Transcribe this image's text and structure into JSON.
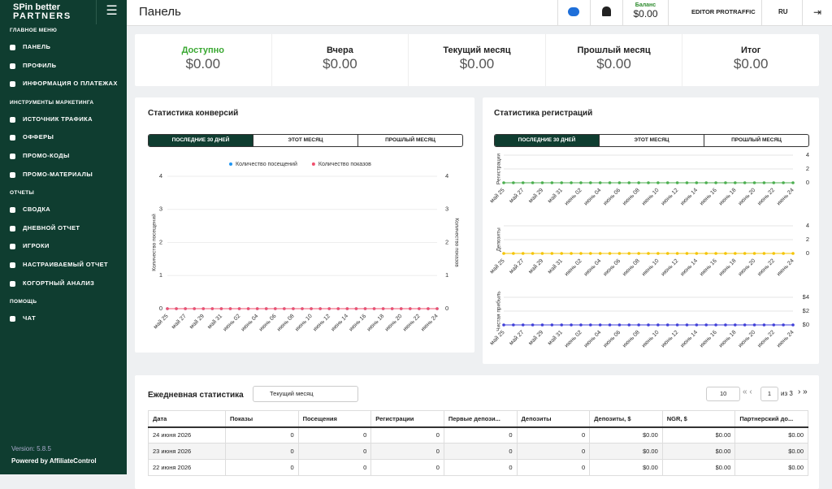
{
  "sidebar": {
    "logo_top": "SPin better",
    "logo_bottom": "PARTNERS",
    "sections": [
      {
        "title": "ГЛАВНОЕ МЕНЮ",
        "items": [
          "ПАНЕЛЬ",
          "ПРОФИЛЬ",
          "ИНФОРМАЦИЯ О ПЛАТЕЖАХ"
        ]
      },
      {
        "title": "ИНСТРУМЕНТЫ МАРКЕТИНГА",
        "items": [
          "ИСТОЧНИК ТРАФИКА",
          "ОФФЕРЫ",
          "ПРОМО-КОДЫ",
          "ПРОМО-МАТЕРИАЛЫ"
        ]
      },
      {
        "title": "ОТЧЕТЫ",
        "items": [
          "СВОДКА",
          "ДНЕВНОЙ ОТЧЕТ",
          "ИГРОКИ",
          "НАСТРАИВАЕМЫЙ ОТЧЕТ",
          "КОГОРТНЫЙ АНАЛИЗ"
        ]
      },
      {
        "title": "ПОМОЩЬ",
        "items": [
          "ЧАТ"
        ]
      }
    ],
    "version": "Version: 5.8.5",
    "powered": "Powered by",
    "brand": "AffiliateControl"
  },
  "header": {
    "title": "Панель",
    "balance_label": "Баланс",
    "balance": "$0.00",
    "user": "EDITOR PROTRAFFIC",
    "lang": "RU"
  },
  "summary": [
    {
      "label": "Доступно",
      "value": "$0.00"
    },
    {
      "label": "Вчера",
      "value": "$0.00"
    },
    {
      "label": "Текущий месяц",
      "value": "$0.00"
    },
    {
      "label": "Прошлый месяц",
      "value": "$0.00"
    },
    {
      "label": "Итог",
      "value": "$0.00"
    }
  ],
  "conversion_chart": {
    "type": "line",
    "title": "Статистика конверсий",
    "tabs": [
      "ПОСЛЕДНИЕ 30 ДНЕЙ",
      "ЭТОТ МЕСЯЦ",
      "ПРОШЛЫЙ МЕСЯЦ"
    ],
    "categories": [
      "май 25",
      null,
      "май 27",
      null,
      "май 29",
      null,
      "май 31",
      null,
      "июнь 02",
      null,
      "июнь 04",
      null,
      "июнь 06",
      null,
      "июнь 08",
      null,
      "июнь 10",
      null,
      "июнь 12",
      null,
      "июнь 14",
      null,
      "июнь 16",
      null,
      "июнь 18",
      null,
      "июнь 20",
      null,
      "июнь 22",
      null,
      "июнь 24"
    ],
    "series": [
      {
        "name": "Количество посещений",
        "color": "#2196f3",
        "values": [
          0,
          0,
          0,
          0,
          0,
          0,
          0,
          0,
          0,
          0,
          0,
          0,
          0,
          0,
          0,
          0,
          0,
          0,
          0,
          0,
          0,
          0,
          0,
          0,
          0,
          0,
          0,
          0,
          0,
          0,
          0
        ]
      },
      {
        "name": "Количество показов",
        "color": "#f0506e",
        "axis": "y2",
        "values": [
          0,
          0,
          0,
          0,
          0,
          0,
          0,
          0,
          0,
          0,
          0,
          0,
          0,
          0,
          0,
          0,
          0,
          0,
          0,
          0,
          0,
          0,
          0,
          0,
          0,
          0,
          0,
          0,
          0,
          0,
          0
        ]
      }
    ],
    "ylim": [
      0,
      4
    ],
    "yticks": [
      0,
      1,
      2,
      3,
      4
    ],
    "y2lim": [
      0,
      4
    ],
    "y2ticks": [
      0,
      1,
      2,
      3,
      4
    ],
    "ylabel": "Количество посещений",
    "y2label": "Количество показов"
  },
  "registration_chart": {
    "title": "Статистика регистраций",
    "tabs": [
      "ПОСЛЕДНИЕ 30 ДНЕЙ",
      "ЭТОТ МЕСЯЦ",
      "ПРОШЛЫЙ МЕСЯЦ"
    ],
    "categories": [
      "май 25",
      null,
      "май 27",
      null,
      "май 29",
      null,
      "май 31",
      null,
      "июнь 02",
      null,
      "июнь 04",
      null,
      "июнь 06",
      null,
      "июнь 08",
      null,
      "июнь 10",
      null,
      "июнь 12",
      null,
      "июнь 14",
      null,
      "июнь 16",
      null,
      "июнь 18",
      null,
      "июнь 20",
      null,
      "июнь 22",
      null,
      "июнь 24"
    ],
    "panels": [
      {
        "type": "line",
        "ylabel": "Регистрации",
        "color": "#4caf50",
        "values": [
          0,
          0,
          0,
          0,
          0,
          0,
          0,
          0,
          0,
          0,
          0,
          0,
          0,
          0,
          0,
          0,
          0,
          0,
          0,
          0,
          0,
          0,
          0,
          0,
          0,
          0,
          0,
          0,
          0,
          0,
          0
        ],
        "ylim": [
          0,
          4
        ],
        "yticks": [
          0,
          2,
          4
        ]
      },
      {
        "type": "line",
        "ylabel": "Депозиты",
        "color": "#f5c400",
        "values": [
          0,
          0,
          0,
          0,
          0,
          0,
          0,
          0,
          0,
          0,
          0,
          0,
          0,
          0,
          0,
          0,
          0,
          0,
          0,
          0,
          0,
          0,
          0,
          0,
          0,
          0,
          0,
          0,
          0,
          0,
          0
        ],
        "ylim": [
          0,
          4
        ],
        "yticks": [
          0,
          2,
          4
        ]
      },
      {
        "type": "line",
        "ylabel": "Чистая прибыль",
        "color": "#3f3fd8",
        "values": [
          0,
          0,
          0,
          0,
          0,
          0,
          0,
          0,
          0,
          0,
          0,
          0,
          0,
          0,
          0,
          0,
          0,
          0,
          0,
          0,
          0,
          0,
          0,
          0,
          0,
          0,
          0,
          0,
          0,
          0,
          0
        ],
        "ylim": [
          0,
          4
        ],
        "yticks": [
          {
            "value": 0,
            "label": "$0"
          },
          {
            "value": 2,
            "label": "$2"
          },
          {
            "value": 4,
            "label": "$4"
          }
        ]
      }
    ]
  },
  "daily": {
    "title": "Ежедневная статистика",
    "period": "Текущий месяц",
    "page_size": "10",
    "page": "1",
    "page_of": "из 3",
    "columns": [
      "Дата",
      "Показы",
      "Посещения",
      "Регистрации",
      "Первые депози...",
      "Депозиты",
      "Депозиты, $",
      "NGR, $",
      "Партнерский до..."
    ],
    "rows": [
      [
        "24 июня 2026",
        0,
        0,
        0,
        0,
        0,
        "$0.00",
        "$0.00",
        "$0.00"
      ],
      [
        "23 июня 2026",
        0,
        0,
        0,
        0,
        0,
        "$0.00",
        "$0.00",
        "$0.00"
      ],
      [
        "22 июня 2026",
        0,
        0,
        0,
        0,
        0,
        "$0.00",
        "$0.00",
        "$0.00"
      ]
    ]
  }
}
